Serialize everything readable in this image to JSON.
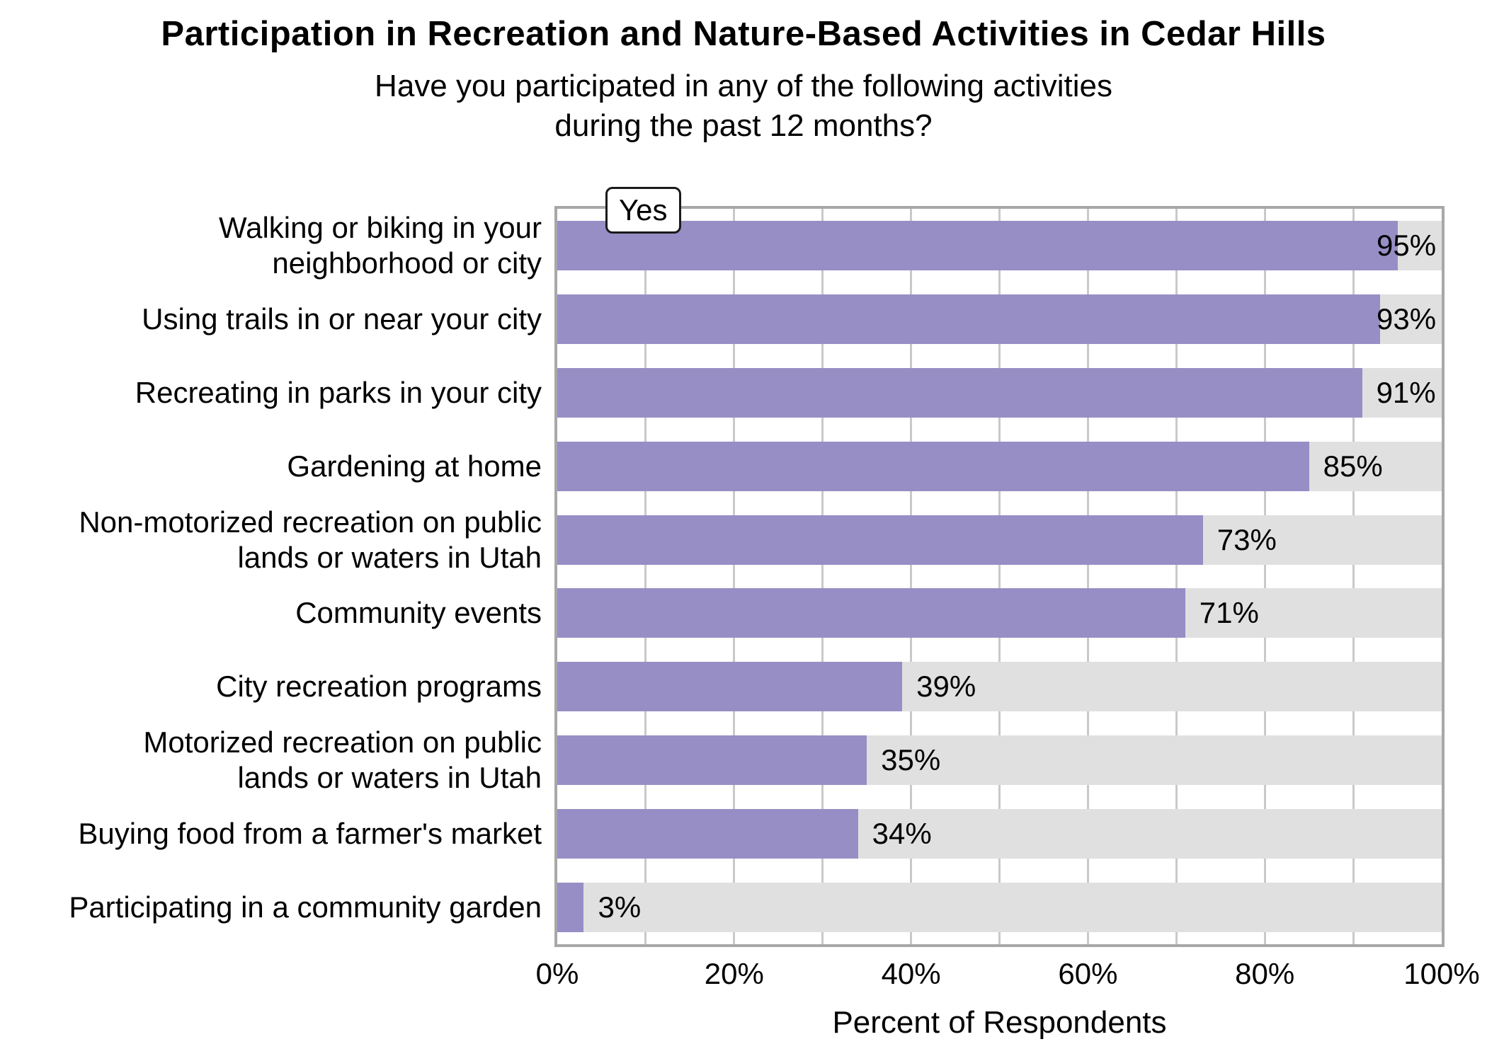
{
  "header": {
    "title": "Participation in Recreation and Nature-Based Activities in Cedar Hills",
    "subtitle": "Have you participated in any of the following activities\nduring the past 12 months?"
  },
  "legend": {
    "label": "Yes"
  },
  "chart_data": {
    "type": "bar",
    "orientation": "horizontal",
    "title": "Participation in Recreation and Nature-Based Activities in Cedar Hills",
    "subtitle": "Have you participated in any of the following activities during the past 12 months?",
    "legend_entries": [
      "Yes"
    ],
    "legend_position": "top-left-inside",
    "categories": [
      "Walking or biking in your\nneighborhood or city",
      "Using trails in or near your city",
      "Recreating in parks in your city",
      "Gardening at home",
      "Non-motorized recreation on public\nlands or waters in Utah",
      "Community events",
      "City recreation programs",
      "Motorized recreation on public\nlands or waters in Utah",
      "Buying food from a farmer's market",
      "Participating in a community garden"
    ],
    "values": [
      95,
      93,
      91,
      85,
      73,
      71,
      39,
      35,
      34,
      3
    ],
    "value_labels": [
      "95%",
      "93%",
      "91%",
      "85%",
      "73%",
      "71%",
      "39%",
      "35%",
      "34%",
      "3%"
    ],
    "xlabel": "Percent of Respondents",
    "ylabel": "",
    "x_ticks": [
      "0%",
      "20%",
      "40%",
      "60%",
      "80%",
      "100%"
    ],
    "x_tick_values": [
      0,
      20,
      40,
      60,
      80,
      100
    ],
    "xlim": [
      0,
      100
    ],
    "gridline_interval": 10,
    "grid": true,
    "colors": {
      "bar": "#978ec5",
      "track": "#e0e0e0",
      "gridline": "#c9c9c9",
      "plot_border": "#a8a8a8",
      "text": "#000000",
      "background": "#ffffff"
    }
  }
}
